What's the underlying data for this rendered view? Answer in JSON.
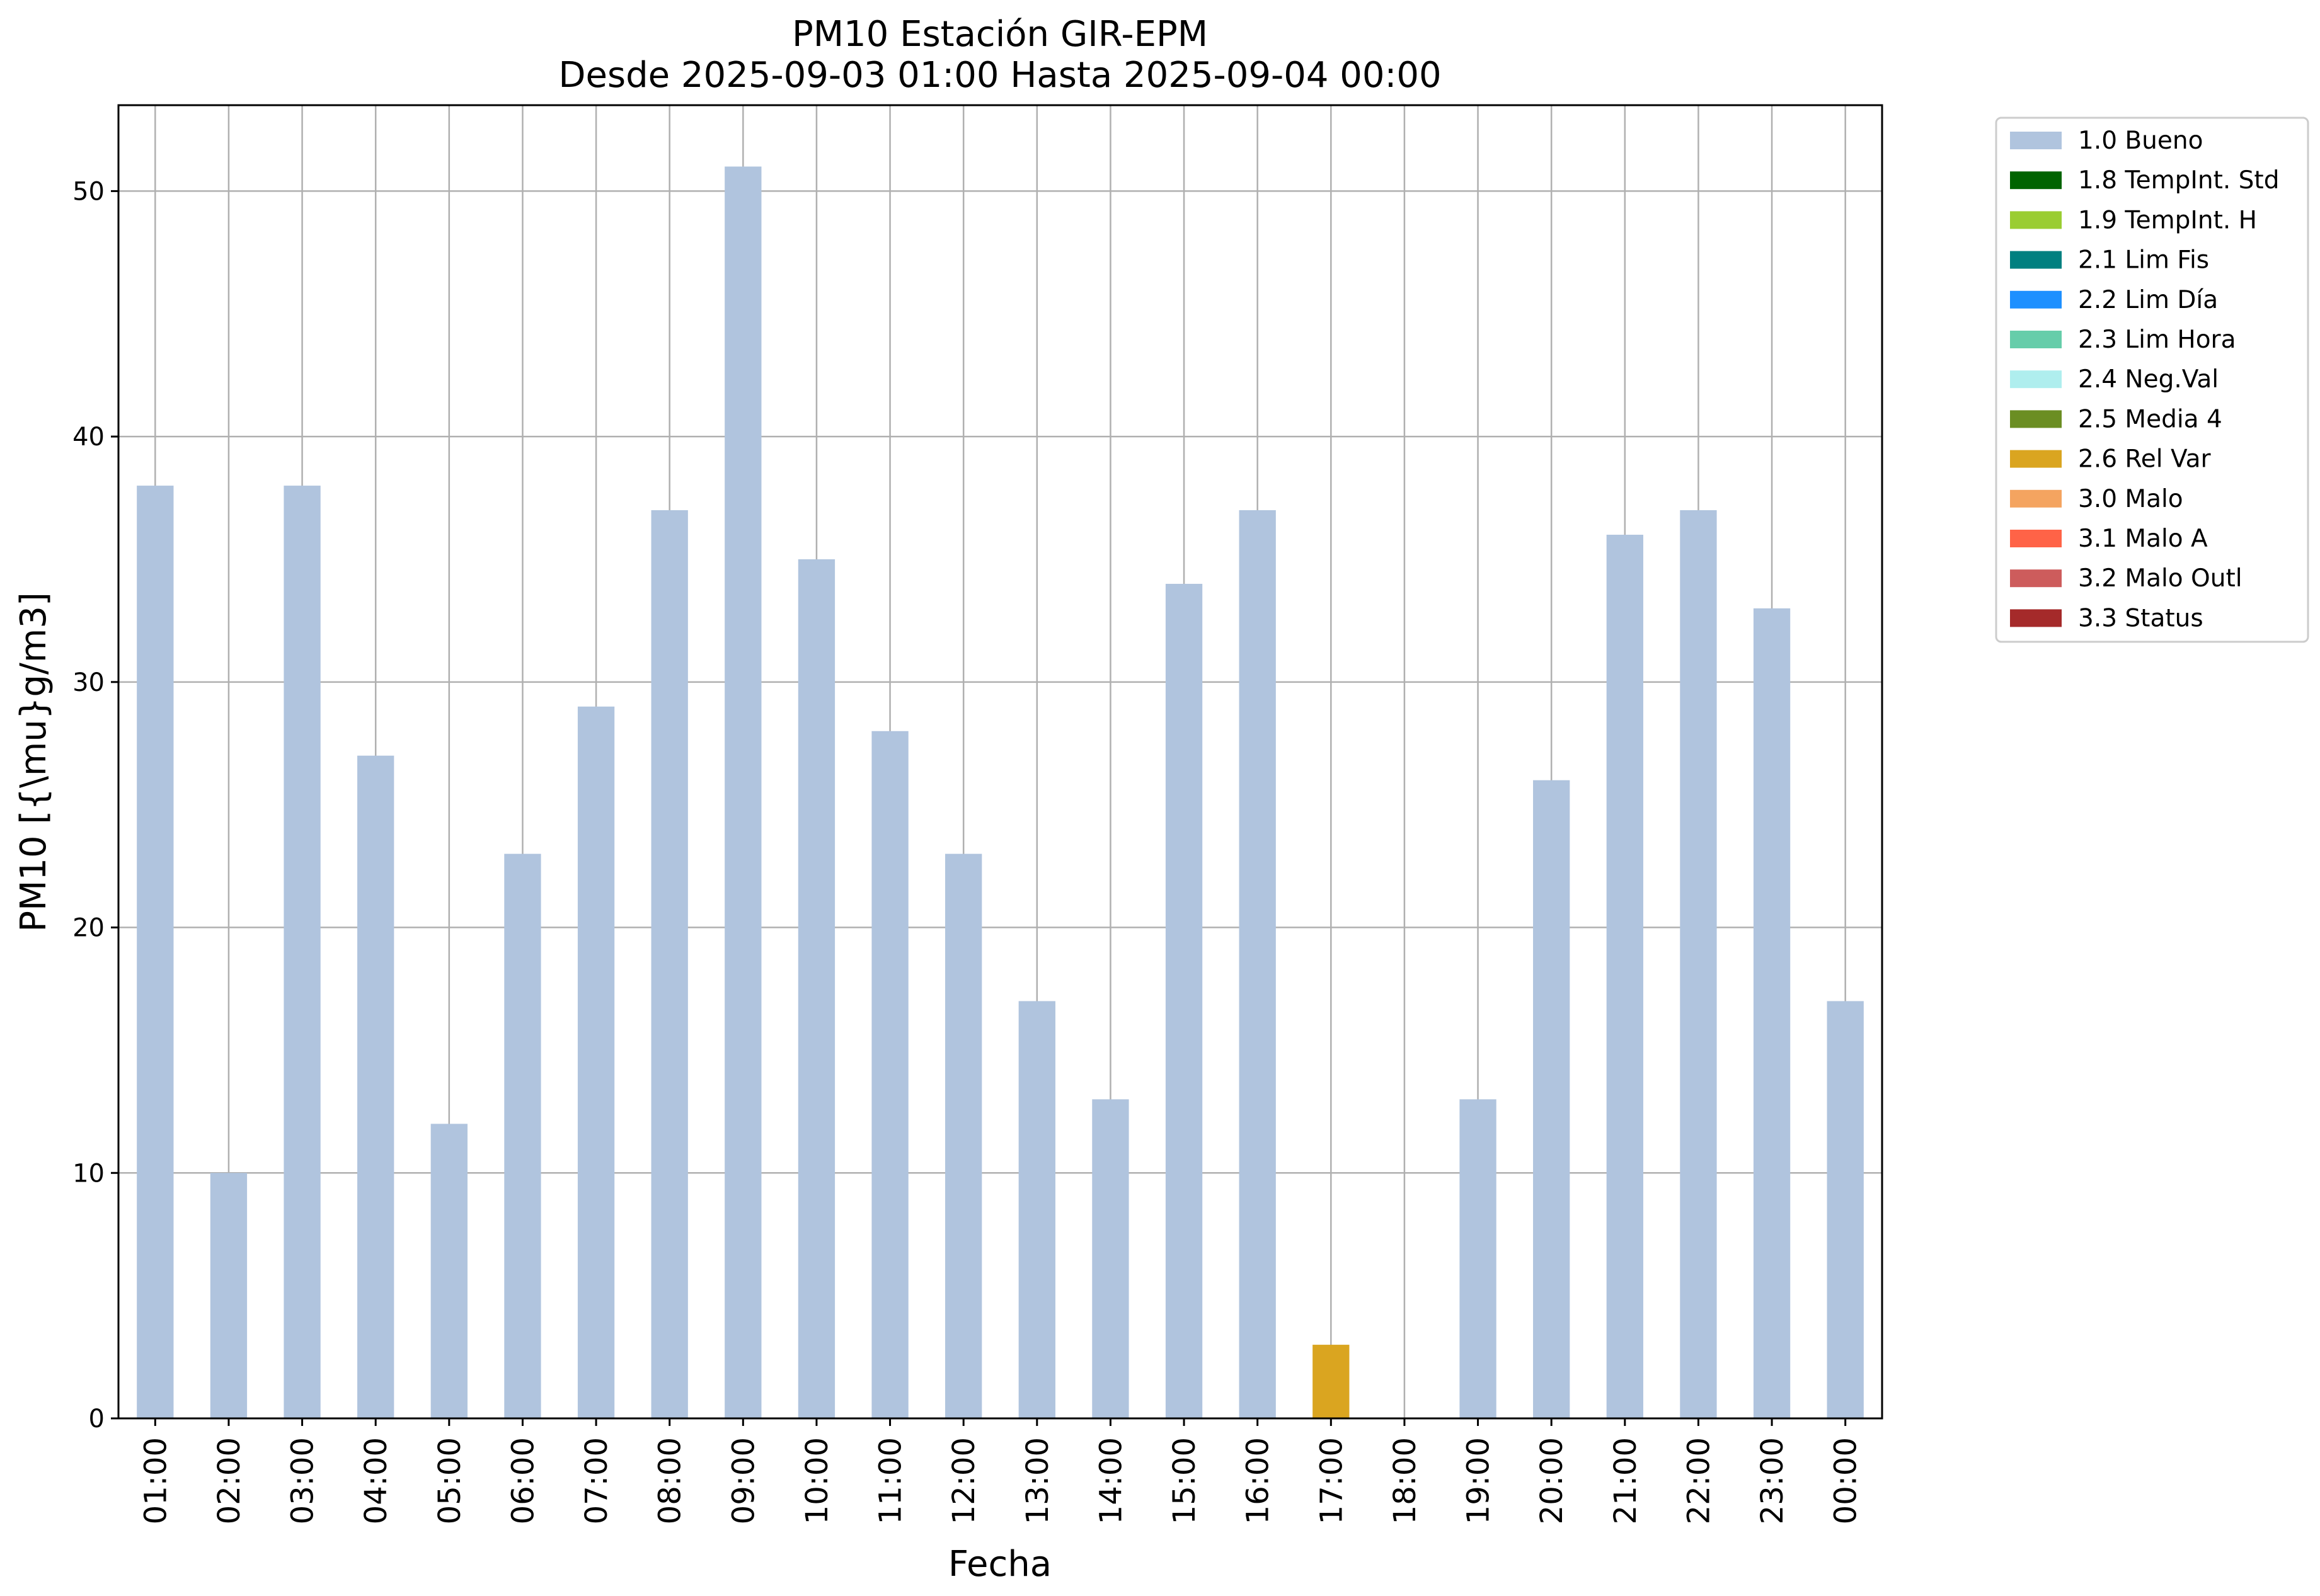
{
  "chart_data": {
    "type": "bar",
    "title_line1": "PM10 Estación GIR-EPM",
    "title_line2": "Desde 2025-09-03 01:00 Hasta 2025-09-04 00:00",
    "xlabel": "Fecha",
    "ylabel": "PM10 [{\\mu}g/m3]",
    "ylim": [
      0,
      53.5
    ],
    "yticks": [
      0,
      10,
      20,
      30,
      40,
      50
    ],
    "grid": true,
    "legend_position": "outside-top-right",
    "categories": [
      "01:00",
      "02:00",
      "03:00",
      "04:00",
      "05:00",
      "06:00",
      "07:00",
      "08:00",
      "09:00",
      "10:00",
      "11:00",
      "12:00",
      "13:00",
      "14:00",
      "15:00",
      "16:00",
      "17:00",
      "18:00",
      "19:00",
      "20:00",
      "21:00",
      "22:00",
      "23:00",
      "00:00"
    ],
    "values": [
      38,
      10,
      38,
      27,
      12,
      23,
      29,
      37,
      51,
      35,
      28,
      23,
      17,
      13,
      34,
      37,
      3,
      null,
      13,
      26,
      36,
      37,
      33,
      17
    ],
    "flags": [
      "1.0 Bueno",
      "1.0 Bueno",
      "1.0 Bueno",
      "1.0 Bueno",
      "1.0 Bueno",
      "1.0 Bueno",
      "1.0 Bueno",
      "1.0 Bueno",
      "1.0 Bueno",
      "1.0 Bueno",
      "1.0 Bueno",
      "1.0 Bueno",
      "1.0 Bueno",
      "1.0 Bueno",
      "1.0 Bueno",
      "1.0 Bueno",
      "2.6 Rel Var",
      null,
      "1.0 Bueno",
      "1.0 Bueno",
      "1.0 Bueno",
      "1.0 Bueno",
      "1.0 Bueno",
      "1.0 Bueno"
    ],
    "legend": [
      {
        "label": "1.0 Bueno",
        "color": "#b0c4de"
      },
      {
        "label": "1.8 TempInt. Std",
        "color": "#006400"
      },
      {
        "label": "1.9 TempInt. H",
        "color": "#9acd32"
      },
      {
        "label": "2.1 Lim Fis",
        "color": "#008080"
      },
      {
        "label": "2.2 Lim Día",
        "color": "#1e90ff"
      },
      {
        "label": "2.3 Lim Hora",
        "color": "#66cdaa"
      },
      {
        "label": "2.4 Neg.Val",
        "color": "#afeeee"
      },
      {
        "label": "2.5 Media 4",
        "color": "#6b8e23"
      },
      {
        "label": "2.6 Rel Var",
        "color": "#daa520"
      },
      {
        "label": "3.0 Malo",
        "color": "#f4a460"
      },
      {
        "label": "3.1 Malo A",
        "color": "#ff6347"
      },
      {
        "label": "3.2 Malo Outl",
        "color": "#cd5c5c"
      },
      {
        "label": "3.3 Status",
        "color": "#a52a2a"
      }
    ]
  }
}
